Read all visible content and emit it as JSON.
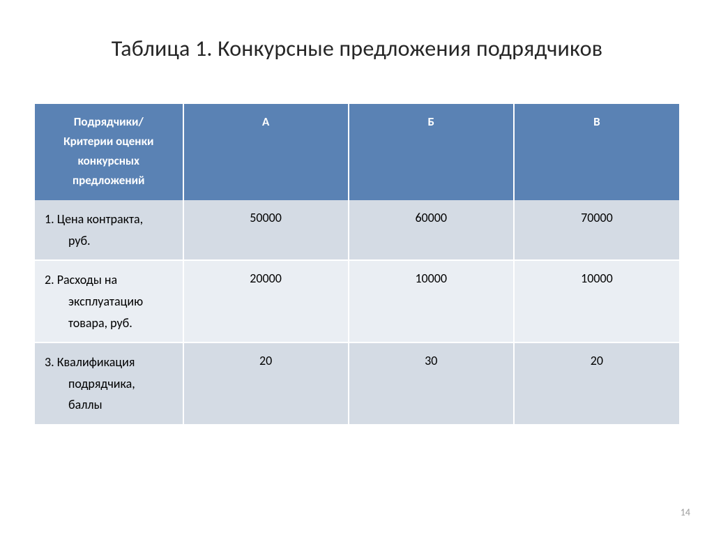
{
  "title": "Таблица 1. Конкурсные предложения подрядчиков",
  "page_number": "14",
  "table": {
    "type": "table",
    "header_bg": "#5a82b4",
    "header_text_color": "#ffffff",
    "row_band_a": "#d4dbe4",
    "row_band_b": "#eaeef3",
    "border_color": "#ffffff",
    "header_fontsize": 17,
    "cell_fontsize": 18,
    "columns": [
      {
        "label_line1": "Подрядчики/",
        "label_line2": "Критерии оценки",
        "label_line3": "конкурсных",
        "label_line4": "предложений",
        "width_pct": 23
      },
      {
        "label": "А",
        "width_pct": 25.666
      },
      {
        "label": "Б",
        "width_pct": 25.666
      },
      {
        "label": "В",
        "width_pct": 25.666
      }
    ],
    "rows": [
      {
        "band": "a",
        "label_line1": "1.    Цена контракта,",
        "label_line2": "руб.",
        "values": [
          "50000",
          "60000",
          "70000"
        ]
      },
      {
        "band": "b",
        "label_line1": "2. Расходы на",
        "label_line2": "эксплуатацию",
        "label_line3": "товара, руб.",
        "values": [
          "20000",
          "10000",
          "10000"
        ]
      },
      {
        "band": "a",
        "label_line1": "3. Квалификация",
        "label_line2": "подрядчика,",
        "label_line3": "баллы",
        "values": [
          "20",
          "30",
          "20"
        ]
      }
    ]
  }
}
